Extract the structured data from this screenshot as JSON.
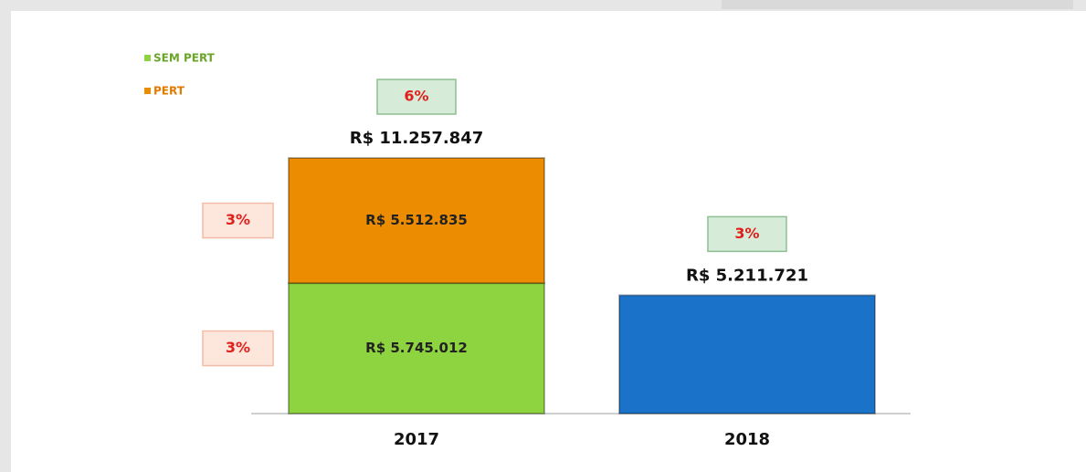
{
  "chart_data": {
    "type": "stacked_bar",
    "categories": [
      "2017",
      "2018"
    ],
    "series": [
      {
        "name": "SEM PERT",
        "color": "#8ed440",
        "values": [
          5745012,
          null
        ],
        "value_labels": [
          "R$ 5.745.012",
          null
        ],
        "pct_labels": [
          "3%",
          null
        ]
      },
      {
        "name": "PERT",
        "color": "#ec8c00",
        "values": [
          5512835,
          null
        ],
        "value_labels": [
          "R$ 5.512.835",
          null
        ],
        "pct_labels": [
          "3%",
          null
        ]
      },
      {
        "color": "#1b73c9",
        "values": [
          null,
          5211721
        ]
      }
    ],
    "totals": [
      11257847,
      5211721
    ],
    "total_labels": [
      "R$ 11.257.847",
      "R$ 5.211.721"
    ],
    "total_pct_labels": [
      "6%",
      "3%"
    ],
    "legend": "top-left"
  }
}
